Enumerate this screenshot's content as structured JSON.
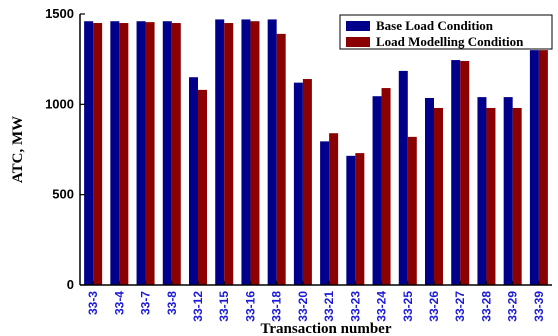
{
  "chart_data": {
    "type": "bar",
    "title": "",
    "xlabel": "Transaction number",
    "ylabel": "ATC, MW",
    "ylim": [
      0,
      1500
    ],
    "yticks": [
      0,
      500,
      1000,
      1500
    ],
    "grid": false,
    "legend_position": "top-right",
    "categories": [
      "33-3",
      "33-4",
      "33-7",
      "33-8",
      "33-12",
      "33-15",
      "33-16",
      "33-18",
      "33-20",
      "33-21",
      "33-23",
      "33-24",
      "33-25",
      "33-26",
      "33-27",
      "33-28",
      "33-29",
      "33-39"
    ],
    "series": [
      {
        "name": "Base Load Condition",
        "color": "#00008b",
        "values": [
          1460,
          1460,
          1460,
          1460,
          1150,
          1470,
          1470,
          1470,
          1120,
          795,
          715,
          1045,
          1185,
          1035,
          1245,
          1040,
          1040,
          1300
        ]
      },
      {
        "name": "Load Modelling Condition",
        "color": "#8b0000",
        "values": [
          1450,
          1450,
          1455,
          1450,
          1080,
          1450,
          1460,
          1390,
          1140,
          840,
          730,
          1090,
          820,
          980,
          1240,
          980,
          980,
          1300
        ]
      }
    ]
  }
}
